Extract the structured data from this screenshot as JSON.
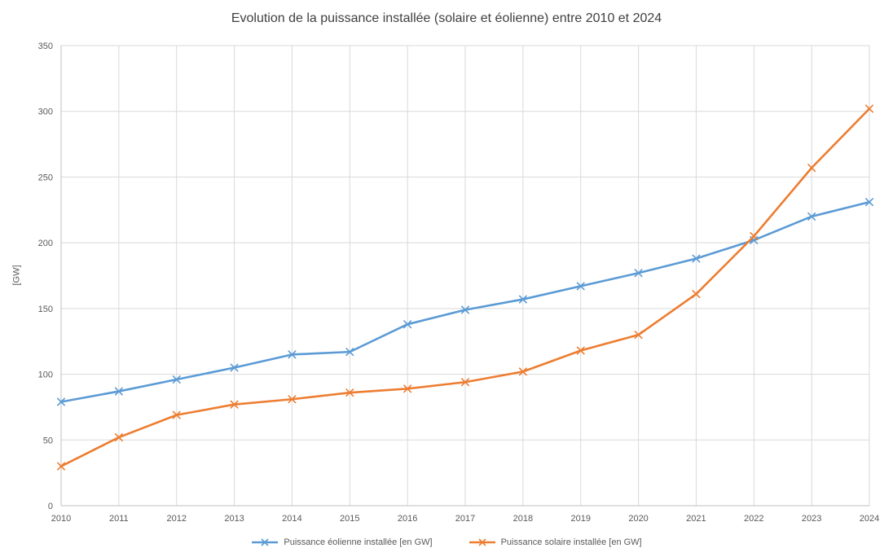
{
  "chart_data": {
    "type": "line",
    "title": "Evolution de la puissance installée (solaire et éolienne) entre 2010 et 2024",
    "xlabel": "",
    "ylabel": "[GW]",
    "x": [
      "2010",
      "2011",
      "2012",
      "2013",
      "2014",
      "2015",
      "2016",
      "2017",
      "2018",
      "2019",
      "2020",
      "2021",
      "2022",
      "2023",
      "2024"
    ],
    "ylim": [
      0,
      350
    ],
    "yticks": [
      0,
      50,
      100,
      150,
      200,
      250,
      300,
      350
    ],
    "grid": true,
    "legend_position": "bottom",
    "marker": "x",
    "series": [
      {
        "name": "Puissance éolienne installée [en GW]",
        "color": "#5B9BD5",
        "values": [
          79,
          87,
          96,
          105,
          115,
          117,
          138,
          149,
          157,
          167,
          177,
          188,
          202,
          220,
          231
        ]
      },
      {
        "name": "Puissance solaire installée [en GW]",
        "color": "#ED7D31",
        "values": [
          30,
          52,
          69,
          77,
          81,
          86,
          89,
          94,
          102,
          118,
          130,
          161,
          205,
          257,
          302
        ]
      }
    ]
  },
  "colors": {
    "grid": "#D9D9D9",
    "axis": "#BFBFBF",
    "tick_label": "#595959",
    "title": "#404040"
  }
}
